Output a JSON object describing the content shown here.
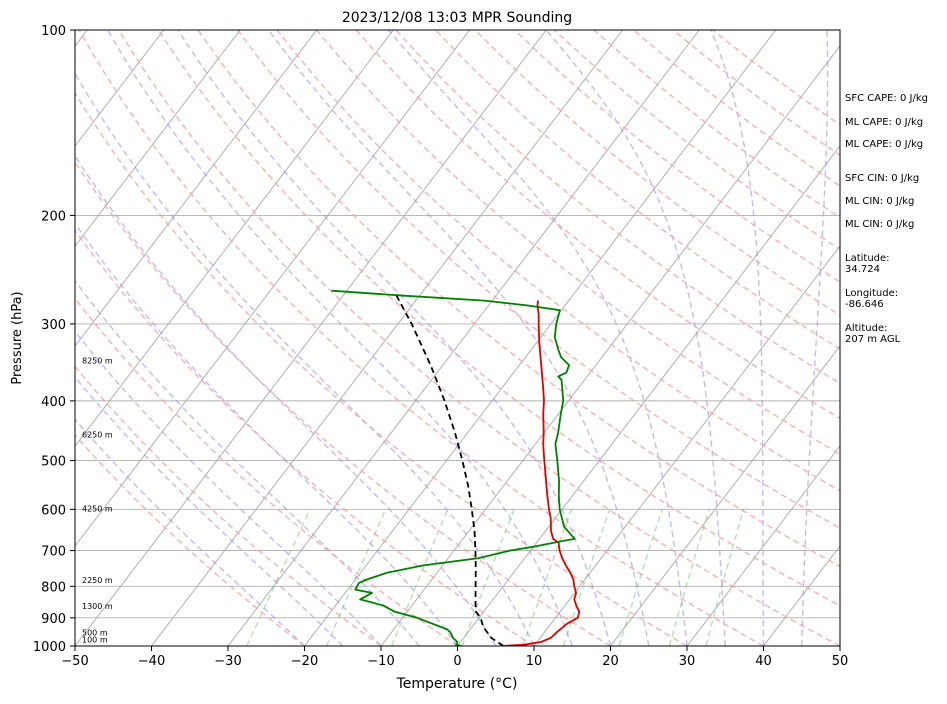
{
  "chart_data": {
    "type": "skew-t",
    "title": "2023/12/08 13:03 MPR Sounding",
    "xlabel": "Temperature (°C)",
    "ylabel": "Pressure (hPa)",
    "xlim": [
      -50,
      50
    ],
    "ylim": [
      1000,
      100
    ],
    "y_scale": "log",
    "x_ticks": [
      "−50",
      "−40",
      "−30",
      "−20",
      "−10",
      "0",
      "10",
      "20",
      "30",
      "40",
      "50"
    ],
    "y_ticks": [
      "100",
      "200",
      "300",
      "400",
      "500",
      "600",
      "700",
      "800",
      "900",
      "1000"
    ],
    "grid": true,
    "height_labels": [
      {
        "p": 980,
        "text": "100 m"
      },
      {
        "p": 955,
        "text": "500 m"
      },
      {
        "p": 865,
        "text": "1300 m"
      },
      {
        "p": 785,
        "text": "2250 m"
      },
      {
        "p": 600,
        "text": "4250 m"
      },
      {
        "p": 455,
        "text": "6250 m"
      },
      {
        "p": 345,
        "text": "8250 m"
      }
    ],
    "series": [
      {
        "color": "#e00000",
        "points": [
          [
            1000,
            6
          ],
          [
            995,
            8.6
          ],
          [
            985,
            10.5
          ],
          [
            970,
            11.4
          ],
          [
            950,
            11.6
          ],
          [
            920,
            12.1
          ],
          [
            900,
            12.9
          ],
          [
            880,
            12.5
          ],
          [
            860,
            11.5
          ],
          [
            840,
            10.6
          ],
          [
            820,
            10.2
          ],
          [
            800,
            9.3
          ],
          [
            780,
            8.5
          ],
          [
            760,
            7.4
          ],
          [
            740,
            6.1
          ],
          [
            720,
            4.9
          ],
          [
            700,
            3.8
          ],
          [
            680,
            2.9
          ],
          [
            670,
            1.8
          ],
          [
            650,
            0.7
          ],
          [
            620,
            -0.6
          ],
          [
            600,
            -1.7
          ],
          [
            570,
            -3.3
          ],
          [
            540,
            -4.9
          ],
          [
            500,
            -7.2
          ],
          [
            470,
            -9.0
          ],
          [
            450,
            -10.1
          ],
          [
            420,
            -12.0
          ],
          [
            400,
            -13.2
          ],
          [
            380,
            -14.7
          ],
          [
            360,
            -16.3
          ],
          [
            340,
            -18.0
          ],
          [
            320,
            -19.8
          ],
          [
            300,
            -21.6
          ],
          [
            290,
            -22.5
          ],
          [
            280,
            -23.6
          ],
          [
            275,
            -24.0
          ]
        ]
      },
      {
        "color": "#008000",
        "points": [
          [
            1000,
            0.5
          ],
          [
            995,
            -0.3
          ],
          [
            985,
            -0.4
          ],
          [
            970,
            -1.4
          ],
          [
            950,
            -2.3
          ],
          [
            940,
            -3.0
          ],
          [
            900,
            -8.1
          ],
          [
            880,
            -11.6
          ],
          [
            860,
            -13.7
          ],
          [
            850,
            -15.5
          ],
          [
            840,
            -17.4
          ],
          [
            820,
            -16.5
          ],
          [
            810,
            -19.0
          ],
          [
            790,
            -19.2
          ],
          [
            780,
            -18.5
          ],
          [
            760,
            -16.5
          ],
          [
            740,
            -12.5
          ],
          [
            720,
            -6.0
          ],
          [
            700,
            -2.7
          ],
          [
            690,
            0.0
          ],
          [
            675,
            3.3
          ],
          [
            670,
            4.6
          ],
          [
            640,
            2.0
          ],
          [
            600,
            -0.3
          ],
          [
            570,
            -1.8
          ],
          [
            540,
            -3.2
          ],
          [
            500,
            -5.5
          ],
          [
            470,
            -7.4
          ],
          [
            450,
            -8.2
          ],
          [
            420,
            -9.7
          ],
          [
            400,
            -10.7
          ],
          [
            380,
            -12.2
          ],
          [
            370,
            -13.0
          ],
          [
            365,
            -13.8
          ],
          [
            360,
            -13.1
          ],
          [
            350,
            -13.5
          ],
          [
            340,
            -15.3
          ],
          [
            330,
            -16.5
          ],
          [
            315,
            -18.2
          ],
          [
            300,
            -19.3
          ],
          [
            285,
            -20.2
          ],
          [
            280,
            -25.0
          ],
          [
            275,
            -31.0
          ],
          [
            270,
            -42.0
          ],
          [
            265,
            -52.0
          ]
        ]
      },
      {
        "color": "#000000",
        "dash": "dashed",
        "points": [
          [
            1000,
            6.0
          ],
          [
            970,
            3.6
          ],
          [
            930,
            1.4
          ],
          [
            900,
            0.2
          ],
          [
            880,
            -1.0
          ],
          [
            850,
            -2.0
          ],
          [
            800,
            -3.6
          ],
          [
            750,
            -5.3
          ],
          [
            700,
            -7.2
          ],
          [
            650,
            -9.3
          ],
          [
            600,
            -11.8
          ],
          [
            550,
            -14.6
          ],
          [
            500,
            -17.9
          ],
          [
            450,
            -21.7
          ],
          [
            400,
            -26.2
          ],
          [
            350,
            -31.6
          ],
          [
            300,
            -38.2
          ],
          [
            270,
            -43.0
          ]
        ]
      }
    ]
  },
  "side_text": {
    "sfc_cape": "SFC CAPE: 0 J/kg",
    "ml_cape_1": "ML CAPE: 0 J/kg",
    "ml_cape_2": "ML CAPE: 0 J/kg",
    "sfc_cin": "SFC CIN: 0 J/kg",
    "ml_cin_1": "ML CIN: 0 J/kg",
    "ml_cin_2": "ML CIN: 0 J/kg",
    "latitude": "Latitude:\n34.724",
    "longitude": "Longitude:\n-86.646",
    "altitude": "Altitude:\n207 m AGL"
  }
}
